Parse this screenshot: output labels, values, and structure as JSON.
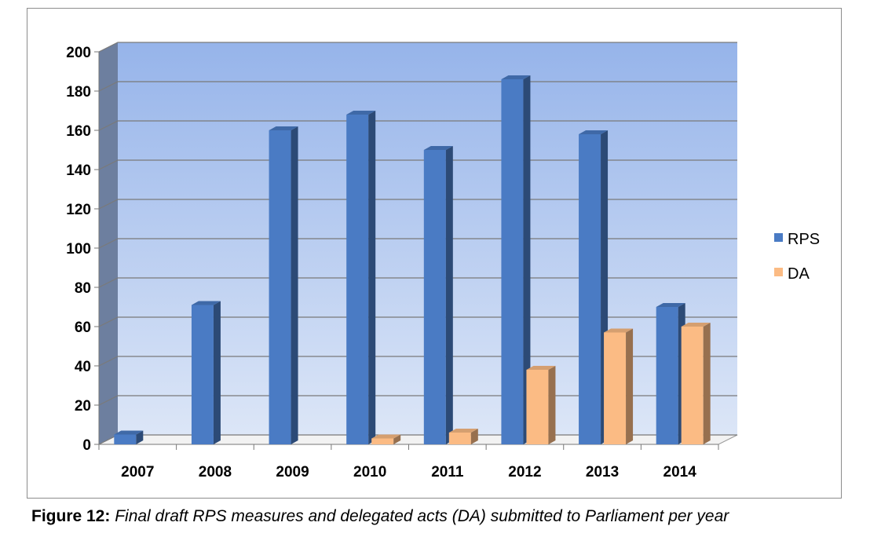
{
  "caption": {
    "label": "Figure 12:",
    "text": "Final draft RPS measures and delegated acts (DA) submitted to Parliament per year"
  },
  "chart_data": {
    "type": "bar",
    "style": "3d-clustered-column",
    "categories": [
      "2007",
      "2008",
      "2009",
      "2010",
      "2011",
      "2012",
      "2013",
      "2014"
    ],
    "series": [
      {
        "name": "RPS",
        "values": [
          5,
          71,
          160,
          168,
          150,
          186,
          158,
          70
        ],
        "color": "#4a7bc4"
      },
      {
        "name": "DA",
        "values": [
          0,
          0,
          0,
          3,
          6,
          38,
          57,
          60
        ],
        "color": "#fbbb84"
      }
    ],
    "title": "",
    "xlabel": "",
    "ylabel": "",
    "ylim": [
      0,
      200
    ],
    "yticks": [
      0,
      20,
      40,
      60,
      80,
      100,
      120,
      140,
      160,
      180,
      200
    ],
    "grid": true,
    "legend": "right",
    "colors": {
      "wall_top": "#96b4ea",
      "wall_bottom": "#dce6f7",
      "side_wall": "#6d7f9f",
      "grid": "#7a7a7a"
    }
  }
}
